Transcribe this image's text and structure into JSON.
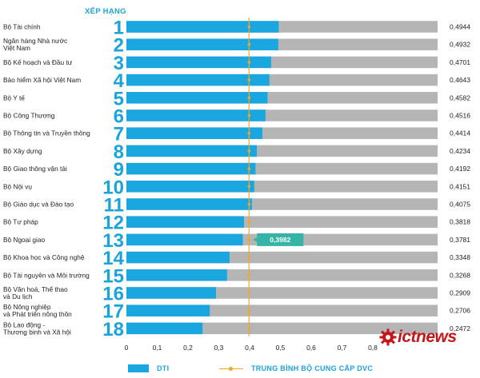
{
  "header": {
    "rank_label": "XẾP HẠNG"
  },
  "legend": {
    "dti_label": "DTI",
    "avg_label": "TRUNG BÌNH BỘ CUNG CẤP DVC"
  },
  "logo": {
    "text": "ictnews"
  },
  "colors": {
    "bar": "#1aa7e0",
    "track": "#b5b5b5",
    "rank": "#1ba3dc",
    "avg_line": "#f5a623",
    "callout": "#35b4a7"
  },
  "chart_data": {
    "type": "bar",
    "orientation": "horizontal",
    "categories": [
      "Bộ Tài chính",
      "Ngân hàng Nhà nước\nViệt Nam",
      "Bộ Kế hoạch và Đầu tư",
      "Bảo hiểm Xã hội Việt Nam",
      "Bộ Y tế",
      "Bộ Công Thương",
      "Bộ Thông tin và Truyền thông",
      "Bộ Xây dựng",
      "Bộ Giao thông vận tải",
      "Bộ Nội vụ",
      "Bộ Giáo dục và Đào tạo",
      "Bộ Tư pháp",
      "Bộ Ngoại giao",
      "Bộ Khoa học và Công nghệ",
      "Bộ Tài nguyên và Môi trường",
      "Bộ Văn hoá, Thể thao\nvà Du lịch",
      "Bộ Nông nghiệp\nvà Phát triển nông thôn",
      "Bộ Lao động -\nThương binh và Xã hội"
    ],
    "ranks": [
      "1",
      "2",
      "3",
      "4",
      "5",
      "6",
      "7",
      "8",
      "9",
      "10",
      "11",
      "12",
      "13",
      "14",
      "15",
      "16",
      "17",
      "18"
    ],
    "values": [
      0.4944,
      0.4932,
      0.4701,
      0.4643,
      0.4582,
      0.4516,
      0.4414,
      0.4234,
      0.4192,
      0.4151,
      0.4075,
      0.3818,
      0.3781,
      0.3348,
      0.3268,
      0.2909,
      0.2706,
      0.2472
    ],
    "value_labels": [
      "0,4944",
      "0,4932",
      "0,4701",
      "0,4643",
      "0,4582",
      "0,4516",
      "0,4414",
      "0,4234",
      "0,4192",
      "0,4151",
      "0,4075",
      "0,3818",
      "0,3781",
      "0,3348",
      "0,3268",
      "0,2909",
      "0,2706",
      "0,2472"
    ],
    "series": [
      {
        "name": "DTI",
        "values": [
          0.4944,
          0.4932,
          0.4701,
          0.4643,
          0.4582,
          0.4516,
          0.4414,
          0.4234,
          0.4192,
          0.4151,
          0.4075,
          0.3818,
          0.3781,
          0.3348,
          0.3268,
          0.2909,
          0.2706,
          0.2472
        ]
      }
    ],
    "reference_line": {
      "name": "TRUNG BÌNH BỘ CUNG CẤP DVC",
      "value": 0.3982,
      "label": "0,3982"
    },
    "xlim": [
      0,
      1.0
    ],
    "xticks": [
      0,
      0.1,
      0.2,
      0.3,
      0.4,
      0.5,
      0.6,
      0.7,
      0.8
    ],
    "xtick_labels": [
      "0",
      "0,1",
      "0,2",
      "0,3",
      "0,4",
      "0,5",
      "0,6",
      "0,7",
      "0,8"
    ],
    "xlabel": "",
    "ylabel": "",
    "grid": false,
    "legend_position": "bottom"
  }
}
